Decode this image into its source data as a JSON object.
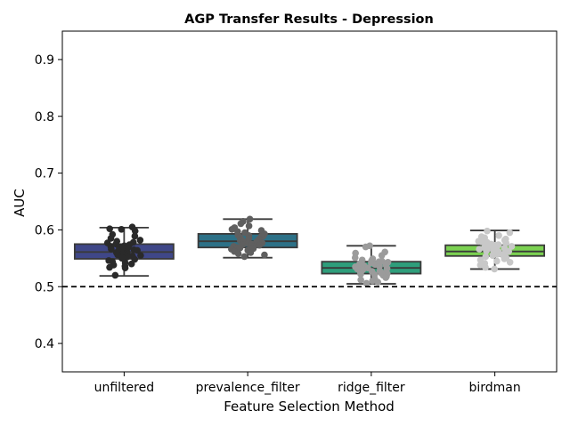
{
  "chart_data": {
    "type": "box",
    "title": "AGP Transfer Results - Depression",
    "xlabel": "Feature Selection Method",
    "ylabel": "AUC",
    "ylim": [
      0.35,
      0.95
    ],
    "yticks": [
      "0.4",
      "0.5",
      "0.6",
      "0.7",
      "0.8",
      "0.9"
    ],
    "reference_line": {
      "y": 0.5,
      "style": "dashed"
    },
    "grid": false,
    "categories": [
      "unfiltered",
      "prevalence_filter",
      "ridge_filter",
      "birdman"
    ],
    "series": [
      {
        "category": "unfiltered",
        "box_color": "#3f4788",
        "point_color": "#2a2a2a",
        "whisker_low": 0.519,
        "q1": 0.549,
        "median": 0.561,
        "q3": 0.575,
        "whisker_high": 0.604,
        "points": [
          0.605,
          0.602,
          0.601,
          0.598,
          0.592,
          0.589,
          0.585,
          0.582,
          0.58,
          0.578,
          0.577,
          0.575,
          0.574,
          0.572,
          0.571,
          0.57,
          0.569,
          0.568,
          0.567,
          0.566,
          0.565,
          0.564,
          0.563,
          0.562,
          0.561,
          0.56,
          0.559,
          0.558,
          0.557,
          0.556,
          0.555,
          0.554,
          0.552,
          0.551,
          0.55,
          0.548,
          0.546,
          0.544,
          0.542,
          0.54,
          0.538,
          0.536,
          0.534,
          0.533,
          0.52
        ]
      },
      {
        "category": "prevalence_filter",
        "box_color": "#2d7187",
        "point_color": "#5f5f5f",
        "whisker_low": 0.551,
        "q1": 0.569,
        "median": 0.58,
        "q3": 0.593,
        "whisker_high": 0.619,
        "points": [
          0.619,
          0.615,
          0.611,
          0.607,
          0.604,
          0.601,
          0.599,
          0.597,
          0.595,
          0.593,
          0.591,
          0.59,
          0.589,
          0.588,
          0.587,
          0.585,
          0.584,
          0.583,
          0.582,
          0.581,
          0.58,
          0.579,
          0.578,
          0.577,
          0.576,
          0.575,
          0.574,
          0.573,
          0.572,
          0.571,
          0.57,
          0.569,
          0.568,
          0.567,
          0.566,
          0.564,
          0.562,
          0.56,
          0.558,
          0.556,
          0.553
        ]
      },
      {
        "category": "ridge_filter",
        "box_color": "#2e9e7b",
        "point_color": "#9b9b9b",
        "whisker_low": 0.505,
        "q1": 0.523,
        "median": 0.533,
        "q3": 0.544,
        "whisker_high": 0.572,
        "points": [
          0.572,
          0.57,
          0.561,
          0.559,
          0.555,
          0.551,
          0.549,
          0.547,
          0.546,
          0.545,
          0.544,
          0.543,
          0.542,
          0.541,
          0.54,
          0.539,
          0.538,
          0.537,
          0.536,
          0.535,
          0.534,
          0.533,
          0.532,
          0.531,
          0.53,
          0.529,
          0.528,
          0.527,
          0.526,
          0.525,
          0.524,
          0.523,
          0.522,
          0.521,
          0.52,
          0.518,
          0.516,
          0.514,
          0.512,
          0.51,
          0.508,
          0.506
        ]
      },
      {
        "category": "birdman",
        "box_color": "#7bd151",
        "point_color": "#c8c8c8",
        "whisker_low": 0.531,
        "q1": 0.554,
        "median": 0.562,
        "q3": 0.573,
        "whisker_high": 0.599,
        "points": [
          0.598,
          0.595,
          0.59,
          0.588,
          0.586,
          0.584,
          0.582,
          0.58,
          0.579,
          0.578,
          0.577,
          0.576,
          0.575,
          0.574,
          0.573,
          0.572,
          0.571,
          0.57,
          0.569,
          0.568,
          0.567,
          0.566,
          0.565,
          0.564,
          0.563,
          0.562,
          0.561,
          0.56,
          0.559,
          0.558,
          0.557,
          0.556,
          0.555,
          0.553,
          0.551,
          0.549,
          0.547,
          0.545,
          0.543,
          0.541,
          0.538,
          0.534,
          0.531
        ]
      }
    ]
  }
}
